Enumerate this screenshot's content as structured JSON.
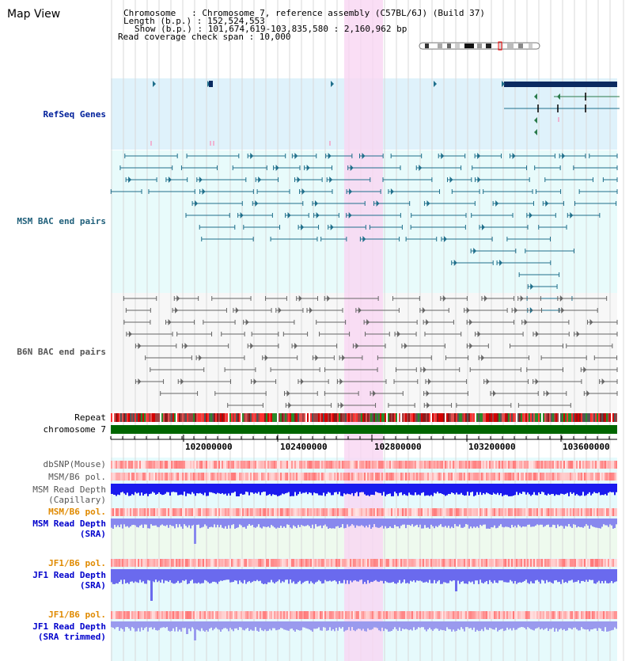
{
  "header": {
    "title": "Map View",
    "info_lines": [
      "Chromosome   : Chromosome 7, reference assembly (C57BL/6J) (Build 37)",
      "Length (b.p.) : 152,524,553",
      "Show (b.p.) : 101,674,619-103,835,580 : 2,160,962 bp",
      "Read coverage check span : 10,000"
    ]
  },
  "tracks": {
    "refseq": "RefSeq Genes",
    "msm_bac": "MSM BAC end pairs",
    "b6n_bac": "B6N BAC end pairs",
    "repeat": "Repeat",
    "chromosome": "chromosome 7",
    "dbsnp": "dbSNP(Mouse)",
    "msm_b6_pol": "MSM/B6 pol.",
    "msm_depth_cap_1": "MSM Read Depth",
    "msm_depth_cap_2": "(Capillary)",
    "msm_b6_pol_2": "MSM/B6 pol.",
    "msm_depth_sra_1": "MSM Read Depth",
    "msm_depth_sra_2": "(SRA)",
    "jf1_b6_pol": "JF1/B6 pol.",
    "jf1_depth_sra_1": "JF1 Read Depth",
    "jf1_depth_sra_2": "(SRA)",
    "jf1_b6_pol_2": "JF1/B6 pol.",
    "jf1_depth_trim_1": "JF1 Read Depth",
    "jf1_depth_trim_2": "(SRA trimmed)"
  },
  "axis": {
    "ticks": [
      "102000000",
      "102400000",
      "102800000",
      "103200000",
      "103600000"
    ]
  },
  "colors": {
    "refseq_bg": "#dff2fb",
    "msm_bg": "#e8fbfb",
    "b6n_bg": "#f7f7f7",
    "highlight": "#f9d6f3",
    "msm_feature": "#1f6f8b",
    "b6n_feature": "#666666",
    "chromosome_bar": "#006600",
    "gene_dark": "#0a2a60",
    "gene_green": "#2a7a4a",
    "label_refseq": "#00209b",
    "label_msm": "#1f5f7a",
    "label_b6n": "#555555",
    "label_pol": "#e08a00",
    "label_depth": "#0000cc"
  }
}
